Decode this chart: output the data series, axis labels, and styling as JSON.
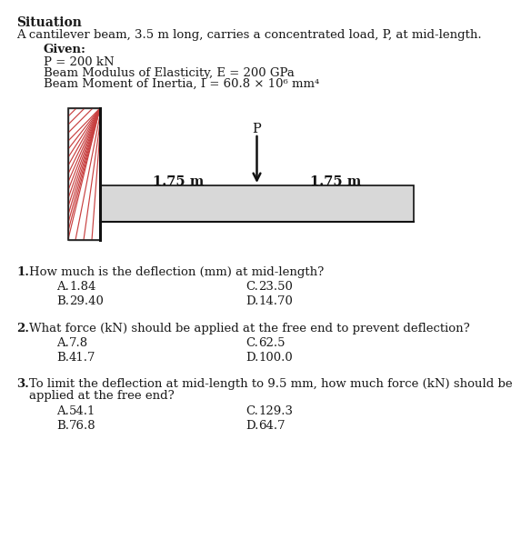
{
  "title": "Situation",
  "situation_text": "A cantilever beam, 3.5 m long, carries a concentrated load, P, at mid-length.",
  "given_label": "Given:",
  "given_lines": [
    "P = 200 kN",
    "Beam Modulus of Elasticity, E = 200 GPa",
    "Beam Moment of Inertia, I = 60.8 × 10⁶ mm⁴"
  ],
  "dim_left": "1.75 m",
  "dim_right": "1.75 m",
  "load_label": "P",
  "q1_num": "1.",
  "q1_text": "How much is the deflection (mm) at mid-length?",
  "q1_choices": [
    [
      "A.",
      "1.84",
      "C.",
      "23.50"
    ],
    [
      "B.",
      "29.40",
      "D.",
      "14.70"
    ]
  ],
  "q2_num": "2.",
  "q2_text": "What force (kN) should be applied at the free end to prevent deflection?",
  "q2_choices": [
    [
      "A.",
      "7.8",
      "C.",
      "62.5"
    ],
    [
      "B.",
      "41.7",
      "D.",
      "100.0"
    ]
  ],
  "q3_num": "3.",
  "q3_text_line1": "To limit the deflection at mid-length to 9.5 mm, how much force (kN) should be",
  "q3_text_line2": "applied at the free end?",
  "q3_choices": [
    [
      "A.",
      "54.1",
      "C.",
      "129.3"
    ],
    [
      "B.",
      "76.8",
      "D.",
      "64.7"
    ]
  ],
  "bg_color": "#ffffff",
  "text_color": "#1a1a1a",
  "beam_fill": "#d8d8d8",
  "wall_hatch_color": "#c84040"
}
